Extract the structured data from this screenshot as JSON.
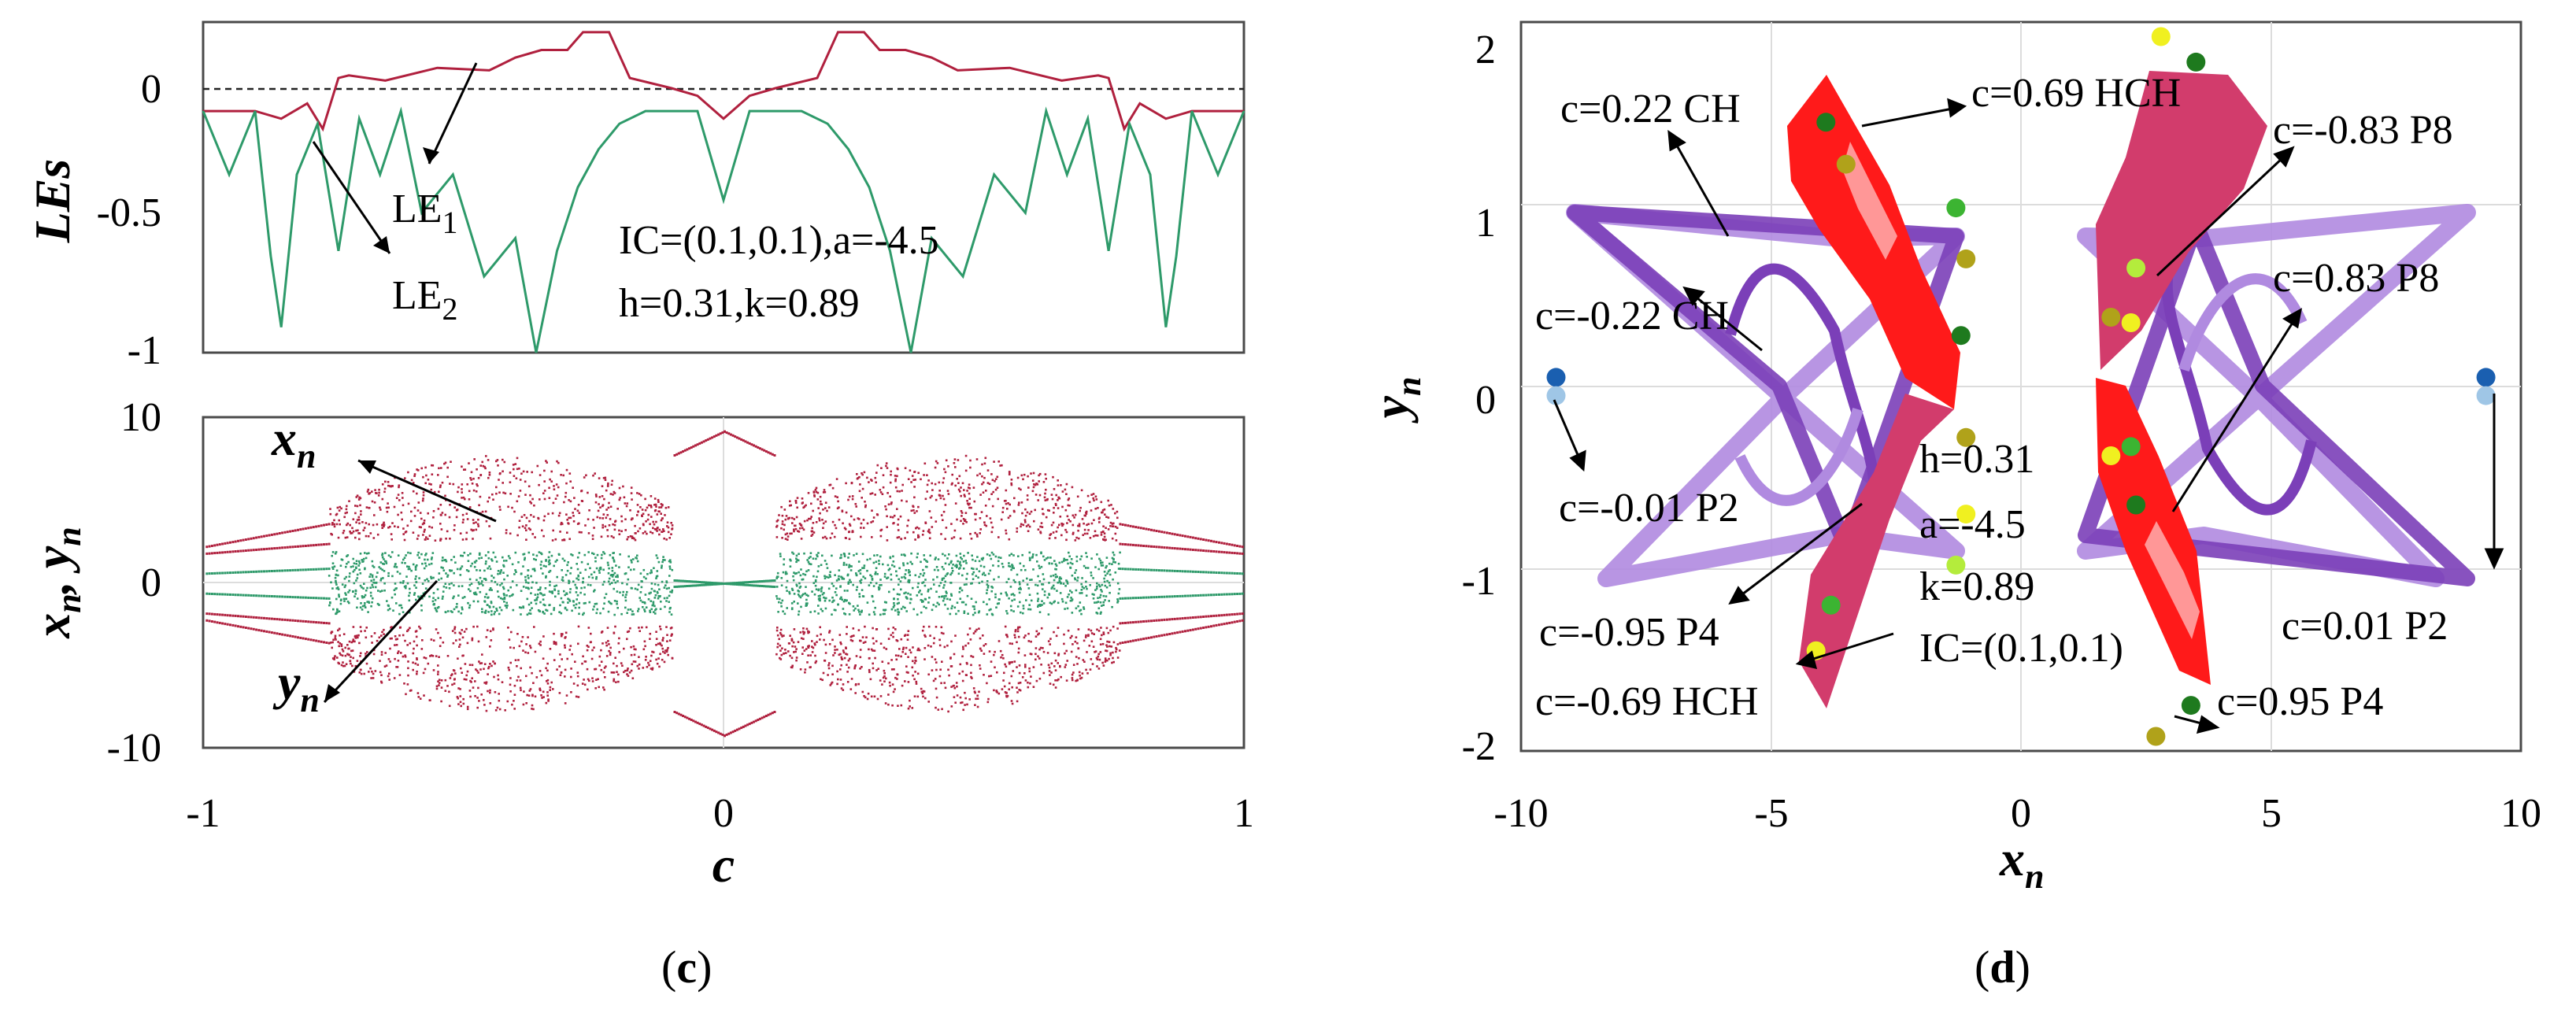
{
  "figure": {
    "panel_c": {
      "label_open": "(",
      "label_letter": "c",
      "label_close": ")"
    },
    "panel_d": {
      "label_open": "(",
      "label_letter": "d",
      "label_close": ")"
    }
  },
  "colors": {
    "crimson": "#b0203e",
    "green": "#2e9a6a",
    "red": "#ff1a1a",
    "rose": "#d23c6c",
    "purple": "#7b3fb8",
    "lavender": "#b08ae0",
    "blue_dark": "#1a5fb0",
    "blue_light": "#9fc6e6",
    "dot_green_dark": "#1e7a1e",
    "dot_green": "#3cb432",
    "dot_olive": "#b0a21a",
    "dot_yellow": "#f0f020",
    "dot_lime": "#b4ec3c"
  },
  "chart_data": [
    {
      "type": "line",
      "panel": "c-top",
      "ylabel": "LEs",
      "xlim": [
        -1,
        1
      ],
      "ylim": [
        -1,
        0.3
      ],
      "yticks": [
        "0",
        "-0.5",
        "-1"
      ],
      "reference_line": 0,
      "series": [
        {
          "name": "LE1",
          "color": "#b0203e",
          "x": [
            -1,
            -0.9,
            -0.85,
            -0.8,
            -0.77,
            -0.74,
            -0.72,
            -0.65,
            -0.55,
            -0.45,
            -0.4,
            -0.35,
            -0.3,
            -0.27,
            -0.25,
            -0.22,
            -0.18,
            -0.1,
            -0.05,
            0,
            0.05,
            0.1,
            0.18,
            0.22,
            0.25,
            0.27,
            0.3,
            0.35,
            0.4,
            0.45,
            0.55,
            0.65,
            0.72,
            0.74,
            0.77,
            0.8,
            0.85,
            0.9,
            1
          ],
          "y": [
            -0.05,
            -0.05,
            -0.08,
            -0.02,
            -0.12,
            0.08,
            0.09,
            0.07,
            0.12,
            0.11,
            0.16,
            0.19,
            0.19,
            0.26,
            0.26,
            0.26,
            0.08,
            0.04,
            0.01,
            -0.08,
            0.01,
            0.04,
            0.08,
            0.26,
            0.26,
            0.26,
            0.19,
            0.19,
            0.16,
            0.11,
            0.12,
            0.07,
            0.09,
            0.08,
            -0.12,
            -0.02,
            -0.08,
            -0.05,
            -0.05
          ]
        },
        {
          "name": "LE2",
          "color": "#2e9a6a",
          "x": [
            -1,
            -0.95,
            -0.9,
            -0.87,
            -0.85,
            -0.82,
            -0.78,
            -0.74,
            -0.7,
            -0.66,
            -0.62,
            -0.58,
            -0.52,
            -0.46,
            -0.4,
            -0.36,
            -0.32,
            -0.28,
            -0.24,
            -0.2,
            -0.15,
            -0.1,
            -0.05,
            0,
            0.05,
            0.1,
            0.15,
            0.2,
            0.24,
            0.28,
            0.32,
            0.36,
            0.4,
            0.46,
            0.52,
            0.58,
            0.62,
            0.66,
            0.7,
            0.74,
            0.78,
            0.82,
            0.85,
            0.87,
            0.9,
            0.95,
            1
          ],
          "y": [
            -0.05,
            -0.3,
            -0.05,
            -0.62,
            -0.9,
            -0.3,
            -0.1,
            -0.6,
            -0.08,
            -0.3,
            -0.05,
            -0.45,
            -0.3,
            -0.7,
            -0.55,
            -1.0,
            -0.6,
            -0.35,
            -0.2,
            -0.1,
            -0.05,
            -0.05,
            -0.05,
            -0.4,
            -0.05,
            -0.05,
            -0.05,
            -0.1,
            -0.2,
            -0.35,
            -0.6,
            -1.0,
            -0.55,
            -0.7,
            -0.3,
            -0.45,
            -0.05,
            -0.3,
            -0.08,
            -0.6,
            -0.1,
            -0.3,
            -0.9,
            -0.62,
            -0.05,
            -0.3,
            -0.05
          ]
        }
      ],
      "annotations": [
        "LE",
        "1",
        "LE",
        "2",
        "IC=(0.1,0.1),a=-4.5",
        "h=0.31,k=0.89"
      ]
    },
    {
      "type": "scatter",
      "panel": "c-bottom",
      "xlabel": "c",
      "ylabel_parts": [
        "x",
        "n",
        ", ",
        "y",
        "n"
      ],
      "xlim": [
        -1,
        1
      ],
      "ylim": [
        -10,
        10
      ],
      "xticks": [
        "-1",
        "0",
        "1"
      ],
      "yticks": [
        "10",
        "0",
        "-10"
      ],
      "series": [
        {
          "name": "xn",
          "color": "#b0203e",
          "envelope": {
            "chaos_c_range": [
              0.1,
              0.76
            ],
            "outer": 7.8,
            "inner": 2.6
          }
        },
        {
          "name": "yn",
          "color": "#2e9a6a",
          "envelope": {
            "chaos_c_range": [
              0.1,
              0.76
            ],
            "half_width": 1.9
          }
        }
      ],
      "annotations": [
        {
          "main": "x",
          "sub": "n"
        },
        {
          "main": "y",
          "sub": "n"
        }
      ]
    },
    {
      "type": "scatter",
      "panel": "d",
      "xlabel_parts": [
        "x",
        "n"
      ],
      "ylabel_parts": [
        "y",
        "n"
      ],
      "xlim": [
        -10,
        10
      ],
      "ylim": [
        -2,
        2
      ],
      "xticks": [
        "-10",
        "-5",
        "0",
        "5",
        "10"
      ],
      "yticks": [
        "2",
        "1",
        "0",
        "-1",
        "-2"
      ],
      "annotations": [
        "c=0.22 CH",
        "c=0.69 HCH",
        "c=-0.83 P8",
        "c=0.83 P8",
        "c=-0.22 CH",
        "c=-0.01 P2",
        "h=0.31",
        "a=-4.5",
        "k=0.89",
        "IC=(0.1,0.1)",
        "c=-0.95 P4",
        "c=-0.69 HCH",
        "c=0.01 P2",
        "c=0.95 P4"
      ],
      "attractors": [
        {
          "label": "c=0.69 HCH",
          "color": "#ff1a1a",
          "region": "left-upper/right-lower bowtie"
        },
        {
          "label": "c=-0.69 HCH",
          "color": "#d23c6c",
          "region": "right-upper/left-lower bowtie"
        },
        {
          "label": "c=0.22 CH",
          "color": "#7b3fb8"
        },
        {
          "label": "c=-0.22 CH",
          "color": "#b08ae0"
        }
      ],
      "periodic_points": {
        "P2": [
          [
            -9.3,
            0.05
          ],
          [
            -9.3,
            -0.05
          ],
          [
            9.3,
            0.05
          ],
          [
            9.3,
            -0.05
          ]
        ],
        "P4": [
          [
            -3.8,
            -1.2
          ],
          [
            -4.1,
            -1.45
          ],
          [
            2.7,
            -1.92
          ],
          [
            3.4,
            -1.75
          ]
        ],
        "P8": [
          [
            -3.9,
            1.45
          ],
          [
            -3.5,
            1.22
          ],
          [
            -1.3,
            0.98
          ],
          [
            -1.1,
            0.7
          ],
          [
            -1.2,
            0.28
          ],
          [
            -1.1,
            -0.28
          ],
          [
            -1.1,
            -0.7
          ],
          [
            -1.3,
            -0.98
          ],
          [
            2.3,
            0.65
          ],
          [
            2.2,
            0.35
          ],
          [
            1.8,
            -0.38
          ],
          [
            2.3,
            -0.65
          ],
          [
            2.2,
            -0.33
          ],
          [
            1.8,
            0.38
          ],
          [
            3.5,
            1.78
          ],
          [
            2.8,
            1.92
          ]
        ]
      }
    }
  ]
}
